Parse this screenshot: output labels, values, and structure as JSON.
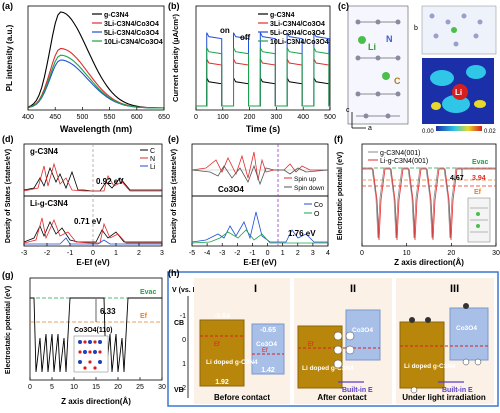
{
  "panels": {
    "a": {
      "label": "(a)",
      "chart_data": {
        "type": "line",
        "xlabel": "Wavelength (nm)",
        "ylabel": "PL intensity (a.u.)",
        "xlim": [
          400,
          650
        ],
        "x_ticks": [
          "400",
          "450",
          "500",
          "550",
          "600",
          "650"
        ],
        "series": [
          {
            "name": "g-C3N4",
            "color": "#000000",
            "peak_x": 460,
            "peak_y": 1.0
          },
          {
            "name": "3Li-C3N4/Co3O4",
            "color": "#e32b2b",
            "peak_x": 460,
            "peak_y": 0.62
          },
          {
            "name": "5Li-C3N4/Co3O4",
            "color": "#1f4fd6",
            "peak_x": 460,
            "peak_y": 0.5
          },
          {
            "name": "10Li-C3N4/Co3O4",
            "color": "#1aa34a",
            "peak_x": 460,
            "peak_y": 0.55
          }
        ]
      }
    },
    "b": {
      "label": "(b)",
      "annotations": [
        "on",
        "off"
      ],
      "chart_data": {
        "type": "line",
        "xlabel": "Time (s)",
        "ylabel": "Current density (μA/cm²)",
        "xlim": [
          0,
          500
        ],
        "x_ticks": [
          "0",
          "100",
          "200",
          "300",
          "400",
          "500"
        ],
        "series": [
          {
            "name": "g-C3N4",
            "color": "#000000",
            "on_level": 0.3
          },
          {
            "name": "3Li-C3N4/Co3O4",
            "color": "#e32b2b",
            "on_level": 0.5
          },
          {
            "name": "5Li-C3N4/Co3O4",
            "color": "#1f4fd6",
            "on_level": 0.78
          },
          {
            "name": "10Li-C3N4/Co3O4",
            "color": "#1aa34a",
            "on_level": 0.62
          }
        ]
      }
    },
    "c": {
      "label": "(c)",
      "atoms": [
        "Li",
        "N",
        "C"
      ],
      "axes": [
        "b",
        "c",
        "a"
      ],
      "colorbar": [
        "0.00",
        "0.02"
      ],
      "li_label": "Li"
    },
    "d": {
      "label": "(d)",
      "top_title": "g-C3N4",
      "bottom_title": "Li-g-C3N4",
      "gap_top": "0.92 eV",
      "gap_bottom": "0.71 eV",
      "legend": [
        "C",
        "N",
        "Li"
      ],
      "ylabel": "Density of States (states/eV)",
      "xlabel": "E-Ef (eV)",
      "x_ticks": [
        "-3",
        "-2",
        "-1",
        "0",
        "1",
        "2",
        "3"
      ]
    },
    "e": {
      "label": "(e)",
      "top_title": "Co3O4",
      "spin": [
        "Spin up",
        "Spin down"
      ],
      "legend": [
        "Co",
        "O"
      ],
      "gap": "1.76 eV",
      "ylabel": "Density of States (states/eV)",
      "xlabel": "E-Ef (eV)",
      "x_ticks": [
        "-5",
        "-4",
        "-3",
        "-2",
        "-1",
        "0",
        "1",
        "2",
        "3",
        "4"
      ]
    },
    "f": {
      "label": "(f)",
      "legend": [
        "g-C3N4(001)",
        "Li-g-C3N4(001)"
      ],
      "evac": "Evac",
      "ef": "Ef",
      "wf1": "4.67",
      "wf2": "3.94",
      "ylabel": "Electrostatic potential (eV)",
      "xlabel": "Z axis direction(Å)",
      "x_ticks": [
        "0",
        "10",
        "20",
        "30"
      ]
    },
    "g": {
      "label": "(g)",
      "evac": "Evac",
      "ef": "Ef",
      "wf": "6.33",
      "struct": "Co3O4(110)",
      "ylabel": "Electrostatic potential (eV)",
      "xlabel": "Z axis direction(Å)",
      "x_ticks": [
        "0",
        "5",
        "10",
        "15",
        "20",
        "25",
        "30"
      ]
    },
    "h": {
      "label": "(h)",
      "axis": "V (vs. NHE)",
      "cb": "CB",
      "vb": "VB",
      "ticks": [
        "-1",
        "0",
        "1",
        "2"
      ],
      "sections": [
        {
          "roman": "I",
          "caption": "Before contact"
        },
        {
          "roman": "II",
          "caption": "After contact"
        },
        {
          "roman": "III",
          "caption": "Under light irradiation"
        }
      ],
      "li_cb": "-0.84",
      "li_vb": "1.92",
      "co_cb": "-0.65",
      "co_vb": "1.42",
      "ef": "Ef",
      "li_name": "Li doped g-C3N4",
      "co_name": "Co3O4",
      "builtin": "Built-in E"
    }
  }
}
